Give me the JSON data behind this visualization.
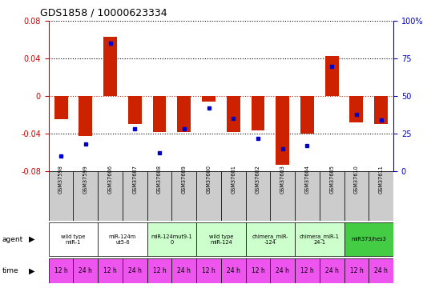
{
  "title": "GDS1858 / 10000623334",
  "samples": [
    "GSM37598",
    "GSM37599",
    "GSM37606",
    "GSM37607",
    "GSM37608",
    "GSM37609",
    "GSM37600",
    "GSM37601",
    "GSM37602",
    "GSM37603",
    "GSM37604",
    "GSM37605",
    "GSM37610",
    "GSM37611"
  ],
  "log10_ratio": [
    -0.025,
    -0.043,
    0.063,
    -0.03,
    -0.038,
    -0.038,
    -0.006,
    -0.038,
    -0.037,
    -0.073,
    -0.04,
    0.043,
    -0.028,
    -0.03
  ],
  "percentile_rank": [
    10,
    18,
    85,
    28,
    12,
    28,
    42,
    35,
    22,
    15,
    17,
    70,
    38,
    34
  ],
  "ylim_left": [
    -0.08,
    0.08
  ],
  "ylim_right": [
    0,
    100
  ],
  "yticks_left": [
    -0.08,
    -0.04,
    0,
    0.04,
    0.08
  ],
  "yticks_right": [
    0,
    25,
    50,
    75,
    100
  ],
  "agent_groups": [
    {
      "label": "wild type\nmiR-1",
      "cols": [
        0,
        1
      ],
      "color": "#ffffff",
      "border": "#000000"
    },
    {
      "label": "miR-124m\nut5-6",
      "cols": [
        2,
        3
      ],
      "color": "#ffffff",
      "border": "#000000"
    },
    {
      "label": "miR-124mut9-1\n0",
      "cols": [
        4,
        5
      ],
      "color": "#ccffcc",
      "border": "#009900"
    },
    {
      "label": "wild type\nmiR-124",
      "cols": [
        6,
        7
      ],
      "color": "#ccffcc",
      "border": "#009900"
    },
    {
      "label": "chimera_miR-\n-124",
      "cols": [
        8,
        9
      ],
      "color": "#ccffcc",
      "border": "#009900"
    },
    {
      "label": "chimera_miR-1\n24-1",
      "cols": [
        10,
        11
      ],
      "color": "#ccffcc",
      "border": "#009900"
    },
    {
      "label": "miR373/hes3",
      "cols": [
        12,
        13
      ],
      "color": "#44cc44",
      "border": "#000000"
    }
  ],
  "time_labels": [
    "12 h",
    "24 h",
    "12 h",
    "24 h",
    "12 h",
    "24 h",
    "12 h",
    "24 h",
    "12 h",
    "24 h",
    "12 h",
    "24 h",
    "12 h",
    "24 h"
  ],
  "time_color": "#ee55ee",
  "bar_color": "#cc2200",
  "dot_color": "#0000cc",
  "bg_color": "#ffffff",
  "dot_color_line": "dotted",
  "label_row_bg": "#cccccc",
  "spine_color_left": "#cc0000",
  "spine_color_right": "#0000cc"
}
